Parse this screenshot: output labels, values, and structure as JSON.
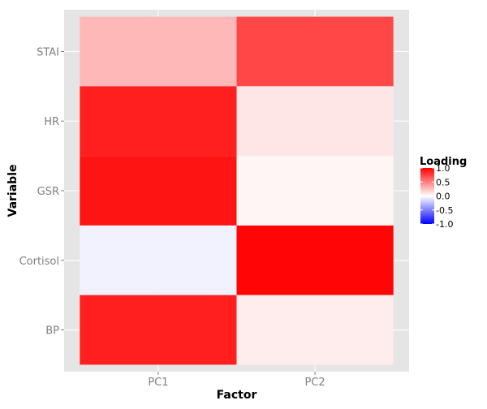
{
  "chart_data": {
    "type": "heatmap",
    "xlabel": "Factor",
    "ylabel": "Variable",
    "x_categories": [
      "PC1",
      "PC2"
    ],
    "y_categories": [
      "BP",
      "Cortisol",
      "GSR",
      "HR",
      "STAI"
    ],
    "cells": [
      {
        "x": "PC1",
        "y": "STAI",
        "value": 0.28
      },
      {
        "x": "PC2",
        "y": "STAI",
        "value": 0.72
      },
      {
        "x": "PC1",
        "y": "HR",
        "value": 0.88
      },
      {
        "x": "PC2",
        "y": "HR",
        "value": 0.1
      },
      {
        "x": "PC1",
        "y": "GSR",
        "value": 0.92
      },
      {
        "x": "PC2",
        "y": "GSR",
        "value": 0.04
      },
      {
        "x": "PC1",
        "y": "Cortisol",
        "value": -0.05
      },
      {
        "x": "PC2",
        "y": "Cortisol",
        "value": 0.98
      },
      {
        "x": "PC1",
        "y": "BP",
        "value": 0.88
      },
      {
        "x": "PC2",
        "y": "BP",
        "value": 0.07
      }
    ],
    "legend": {
      "title": "Loading",
      "position": "right",
      "ticks": [
        1.0,
        0.5,
        0.0,
        -0.5,
        -1.0
      ],
      "tick_labels": [
        "1.0",
        "0.5",
        "0.0",
        "-0.5",
        "-1.0"
      ],
      "range": [
        -1.0,
        1.0
      ],
      "colors": {
        "low": "#0000ff",
        "mid": "#ffffff",
        "high": "#ff0000"
      }
    },
    "panel_background": "#e5e5e5",
    "grid": true
  }
}
